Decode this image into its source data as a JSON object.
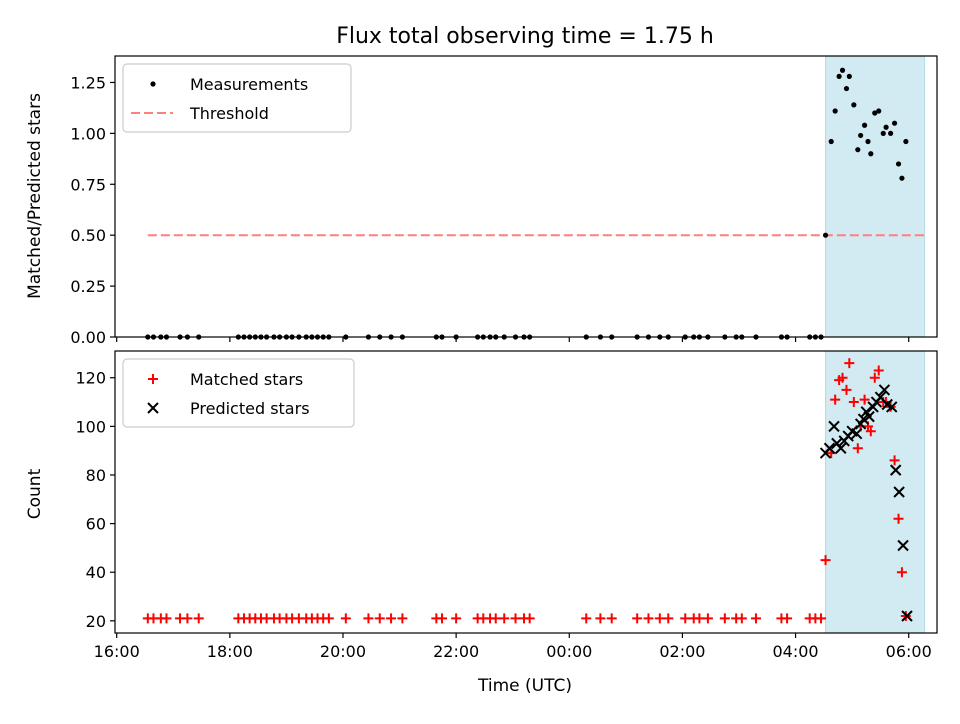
{
  "figure": {
    "title": "Flux total observing time = 1.75 h"
  },
  "colors": {
    "highlight": "#add8e6",
    "measurement": "#000000",
    "threshold": "#ff7f7f",
    "matched": "#ff0000",
    "predicted": "#000000"
  },
  "chart_data": [
    {
      "type": "scatter",
      "panel": "top",
      "xlabel": "",
      "ylabel": "Matched/Predicted stars",
      "xlim": [
        -0.03,
        14.5
      ],
      "ylim": [
        0,
        1.38
      ],
      "yticks": [
        0.0,
        0.25,
        0.5,
        0.75,
        1.0,
        1.25
      ],
      "ytick_labels": [
        "0.00",
        "0.25",
        "0.50",
        "0.75",
        "1.00",
        "1.25"
      ],
      "xticks": [
        0,
        2,
        4,
        6,
        8,
        10,
        12,
        14
      ],
      "legend": {
        "placement": "top-left",
        "entries": [
          "Measurements",
          "Threshold"
        ]
      },
      "highlight_span": [
        12.53,
        14.28
      ],
      "threshold": {
        "name": "Threshold",
        "y": 0.5,
        "x_range": [
          0.55,
          14.28
        ]
      },
      "series": [
        {
          "name": "Measurements",
          "points": [
            [
              0.55,
              0
            ],
            [
              0.65,
              0
            ],
            [
              0.78,
              0
            ],
            [
              0.88,
              0
            ],
            [
              1.12,
              0
            ],
            [
              1.25,
              0
            ],
            [
              1.45,
              0
            ],
            [
              2.15,
              0
            ],
            [
              2.25,
              0
            ],
            [
              2.35,
              0
            ],
            [
              2.45,
              0
            ],
            [
              2.55,
              0
            ],
            [
              2.65,
              0
            ],
            [
              2.78,
              0
            ],
            [
              2.88,
              0
            ],
            [
              3.0,
              0
            ],
            [
              3.1,
              0
            ],
            [
              3.22,
              0
            ],
            [
              3.35,
              0
            ],
            [
              3.45,
              0
            ],
            [
              3.55,
              0
            ],
            [
              3.65,
              0
            ],
            [
              3.75,
              0
            ],
            [
              4.05,
              0
            ],
            [
              4.45,
              0
            ],
            [
              4.65,
              0
            ],
            [
              4.85,
              0
            ],
            [
              5.05,
              0
            ],
            [
              5.65,
              0
            ],
            [
              5.75,
              0
            ],
            [
              6.0,
              0
            ],
            [
              6.38,
              0
            ],
            [
              6.48,
              0
            ],
            [
              6.6,
              0
            ],
            [
              6.7,
              0
            ],
            [
              6.85,
              0
            ],
            [
              7.05,
              0
            ],
            [
              7.2,
              0
            ],
            [
              7.3,
              0
            ],
            [
              8.3,
              0
            ],
            [
              8.55,
              0
            ],
            [
              8.75,
              0
            ],
            [
              9.2,
              0
            ],
            [
              9.4,
              0
            ],
            [
              9.6,
              0
            ],
            [
              9.75,
              0
            ],
            [
              10.05,
              0
            ],
            [
              10.2,
              0
            ],
            [
              10.3,
              0
            ],
            [
              10.45,
              0
            ],
            [
              10.75,
              0
            ],
            [
              10.95,
              0
            ],
            [
              11.05,
              0
            ],
            [
              11.3,
              0
            ],
            [
              11.75,
              0
            ],
            [
              11.85,
              0
            ],
            [
              12.25,
              0
            ],
            [
              12.35,
              0
            ],
            [
              12.45,
              0
            ],
            [
              12.53,
              0.5
            ],
            [
              12.63,
              0.96
            ],
            [
              12.7,
              1.11
            ],
            [
              12.77,
              1.28
            ],
            [
              12.83,
              1.31
            ],
            [
              12.9,
              1.22
            ],
            [
              12.95,
              1.28
            ],
            [
              13.03,
              1.14
            ],
            [
              13.1,
              0.92
            ],
            [
              13.15,
              0.99
            ],
            [
              13.22,
              1.04
            ],
            [
              13.28,
              0.96
            ],
            [
              13.33,
              0.9
            ],
            [
              13.4,
              1.1
            ],
            [
              13.47,
              1.11
            ],
            [
              13.55,
              1.0
            ],
            [
              13.6,
              1.03
            ],
            [
              13.68,
              1.0
            ],
            [
              13.75,
              1.05
            ],
            [
              13.82,
              0.85
            ],
            [
              13.88,
              0.78
            ],
            [
              13.95,
              0.96
            ]
          ]
        }
      ]
    },
    {
      "type": "scatter",
      "panel": "bottom",
      "xlabel": "Time (UTC)",
      "ylabel": "Count",
      "xlim": [
        -0.03,
        14.5
      ],
      "ylim": [
        15,
        131
      ],
      "yticks": [
        20,
        40,
        60,
        80,
        100,
        120
      ],
      "ytick_labels": [
        "20",
        "40",
        "60",
        "80",
        "100",
        "120"
      ],
      "xticks": [
        0,
        2,
        4,
        6,
        8,
        10,
        12,
        14
      ],
      "xtick_labels": [
        "16:00",
        "18:00",
        "20:00",
        "22:00",
        "00:00",
        "02:00",
        "04:00",
        "06:00"
      ],
      "legend": {
        "placement": "top-left",
        "entries": [
          "Matched stars",
          "Predicted stars"
        ]
      },
      "highlight_span": [
        12.53,
        14.28
      ],
      "series": [
        {
          "name": "Matched stars",
          "marker": "plus",
          "points": [
            [
              0.55,
              21
            ],
            [
              0.65,
              21
            ],
            [
              0.78,
              21
            ],
            [
              0.88,
              21
            ],
            [
              1.12,
              21
            ],
            [
              1.25,
              21
            ],
            [
              1.45,
              21
            ],
            [
              2.15,
              21
            ],
            [
              2.25,
              21
            ],
            [
              2.35,
              21
            ],
            [
              2.45,
              21
            ],
            [
              2.55,
              21
            ],
            [
              2.65,
              21
            ],
            [
              2.78,
              21
            ],
            [
              2.88,
              21
            ],
            [
              3.0,
              21
            ],
            [
              3.1,
              21
            ],
            [
              3.22,
              21
            ],
            [
              3.35,
              21
            ],
            [
              3.45,
              21
            ],
            [
              3.55,
              21
            ],
            [
              3.65,
              21
            ],
            [
              3.75,
              21
            ],
            [
              4.05,
              21
            ],
            [
              4.45,
              21
            ],
            [
              4.65,
              21
            ],
            [
              4.85,
              21
            ],
            [
              5.05,
              21
            ],
            [
              5.65,
              21
            ],
            [
              5.75,
              21
            ],
            [
              6.0,
              21
            ],
            [
              6.38,
              21
            ],
            [
              6.48,
              21
            ],
            [
              6.6,
              21
            ],
            [
              6.7,
              21
            ],
            [
              6.85,
              21
            ],
            [
              7.05,
              21
            ],
            [
              7.2,
              21
            ],
            [
              7.3,
              21
            ],
            [
              8.3,
              21
            ],
            [
              8.55,
              21
            ],
            [
              8.75,
              21
            ],
            [
              9.2,
              21
            ],
            [
              9.4,
              21
            ],
            [
              9.6,
              21
            ],
            [
              9.75,
              21
            ],
            [
              10.05,
              21
            ],
            [
              10.2,
              21
            ],
            [
              10.3,
              21
            ],
            [
              10.45,
              21
            ],
            [
              10.75,
              21
            ],
            [
              10.95,
              21
            ],
            [
              11.05,
              21
            ],
            [
              11.3,
              21
            ],
            [
              11.75,
              21
            ],
            [
              11.85,
              21
            ],
            [
              12.25,
              21
            ],
            [
              12.35,
              21
            ],
            [
              12.45,
              21
            ],
            [
              12.53,
              45
            ],
            [
              12.63,
              89
            ],
            [
              12.7,
              111
            ],
            [
              12.77,
              119
            ],
            [
              12.83,
              120
            ],
            [
              12.9,
              115
            ],
            [
              12.95,
              126
            ],
            [
              13.03,
              110
            ],
            [
              13.1,
              91
            ],
            [
              13.15,
              100
            ],
            [
              13.22,
              111
            ],
            [
              13.28,
              100
            ],
            [
              13.33,
              98
            ],
            [
              13.4,
              120
            ],
            [
              13.47,
              123
            ],
            [
              13.55,
              110
            ],
            [
              13.6,
              110
            ],
            [
              13.68,
              108
            ],
            [
              13.75,
              86
            ],
            [
              13.82,
              62
            ],
            [
              13.88,
              40
            ],
            [
              13.95,
              22
            ]
          ]
        },
        {
          "name": "Predicted stars",
          "marker": "x",
          "points": [
            [
              12.53,
              89
            ],
            [
              12.6,
              91
            ],
            [
              12.68,
              100
            ],
            [
              12.73,
              93
            ],
            [
              12.8,
              91
            ],
            [
              12.86,
              94
            ],
            [
              12.93,
              96
            ],
            [
              13.0,
              98
            ],
            [
              13.08,
              97
            ],
            [
              13.15,
              101
            ],
            [
              13.2,
              103
            ],
            [
              13.25,
              106
            ],
            [
              13.3,
              104
            ],
            [
              13.37,
              108
            ],
            [
              13.43,
              110
            ],
            [
              13.5,
              112
            ],
            [
              13.57,
              115
            ],
            [
              13.62,
              109
            ],
            [
              13.7,
              108
            ],
            [
              13.77,
              82
            ],
            [
              13.83,
              73
            ],
            [
              13.9,
              51
            ],
            [
              13.97,
              22
            ]
          ]
        }
      ]
    }
  ]
}
